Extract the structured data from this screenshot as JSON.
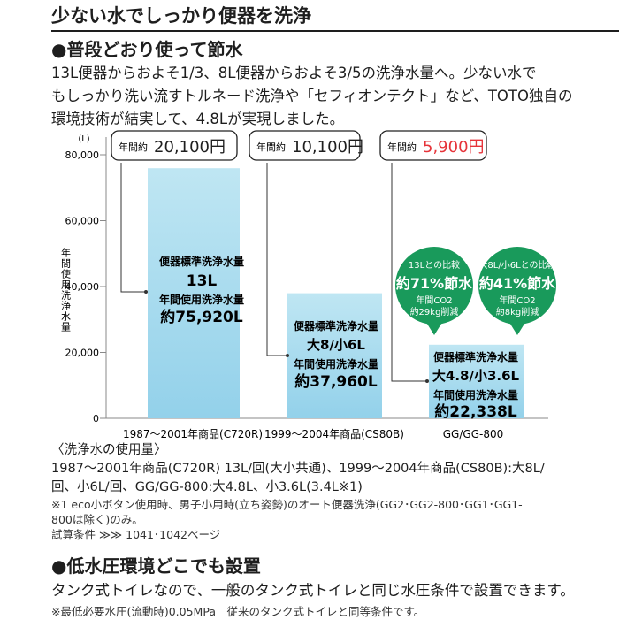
{
  "header": {
    "title": "少ない水でしっかり便器を洗浄",
    "subtitle": "●普段どおり使って節水",
    "paragraph": [
      "13L便器からおよそ1/3、8L便器からおよそ3/5の洗浄水量へ。少ない水で",
      "もしっかり洗い流すトルネード洗浄や「セフィオンテクト」など、TOTO独自の",
      "環境技術が結実して、4.8Lが実現しました。"
    ]
  },
  "chart_data": {
    "type": "bar",
    "unit_label": "(L)",
    "ylabel": "年間使用洗浄水量",
    "ylim": [
      0,
      80000
    ],
    "yticks": [
      "80,000",
      "60,000",
      "40,000",
      "20,000",
      "0"
    ],
    "categories": [
      "1987～2001年商品(C720R)",
      "1999～2004年商品(CS80B)",
      "GG/GG-800"
    ],
    "values": [
      75920,
      37960,
      22338
    ],
    "cost_boxes": [
      {
        "prefix": "年間約",
        "amount": "20,100円"
      },
      {
        "prefix": "年間約",
        "amount": "10,100円"
      },
      {
        "prefix": "年間約",
        "amount": "5,900円"
      }
    ],
    "bar_labels": [
      [
        "便器標準洗浄水量",
        "13L",
        "年間使用洗浄水量",
        "約75,920L"
      ],
      [
        "便器標準洗浄水量",
        "大8/小6L",
        "年間使用洗浄水量",
        "約37,960L"
      ],
      [
        "便器標準洗浄水量",
        "大4.8/小3.6L",
        "年間使用洗浄水量",
        "約22,338L"
      ]
    ],
    "badges": [
      [
        "13Lとの比較",
        "約71%節水",
        "年間CO2",
        "約29kg削減"
      ],
      [
        "大8L/小6Lとの比較",
        "約41%節水",
        "年間CO2",
        "約8kg削減"
      ]
    ],
    "colors": {
      "bar": "#a9dcee",
      "highlight": "#e63339",
      "badge": "#199a5b"
    }
  },
  "notes": {
    "heading": "〈洗浄水の使用量〉",
    "line1": "1987～2001年商品(C720R) 13L/回(大小共通)、1999～2004年商品(CS80B):大8L/",
    "line2": "回、小6L/回、GG/GG-800:大4.8L、小3.6L(3.4L※1)",
    "footnote1": "※1 eco小ボタン使用時、男子小用時(立ち姿勢)のオート便器洗浄(GG2･GG2-800･GG1･GG1-",
    "footnote2": "800は除く)のみ。",
    "test": "試算条件 ≫≫ 1041･1042ページ"
  },
  "section2": {
    "heading": "●低水圧環境どこでも設置",
    "text": "タンク式トイレなので、一般のタンク式トイレと同じ水圧条件で設置できます。",
    "footnote": "※最低必要水圧(流動時)0.05MPa　従来のタンク式トイレと同等条件です。"
  }
}
